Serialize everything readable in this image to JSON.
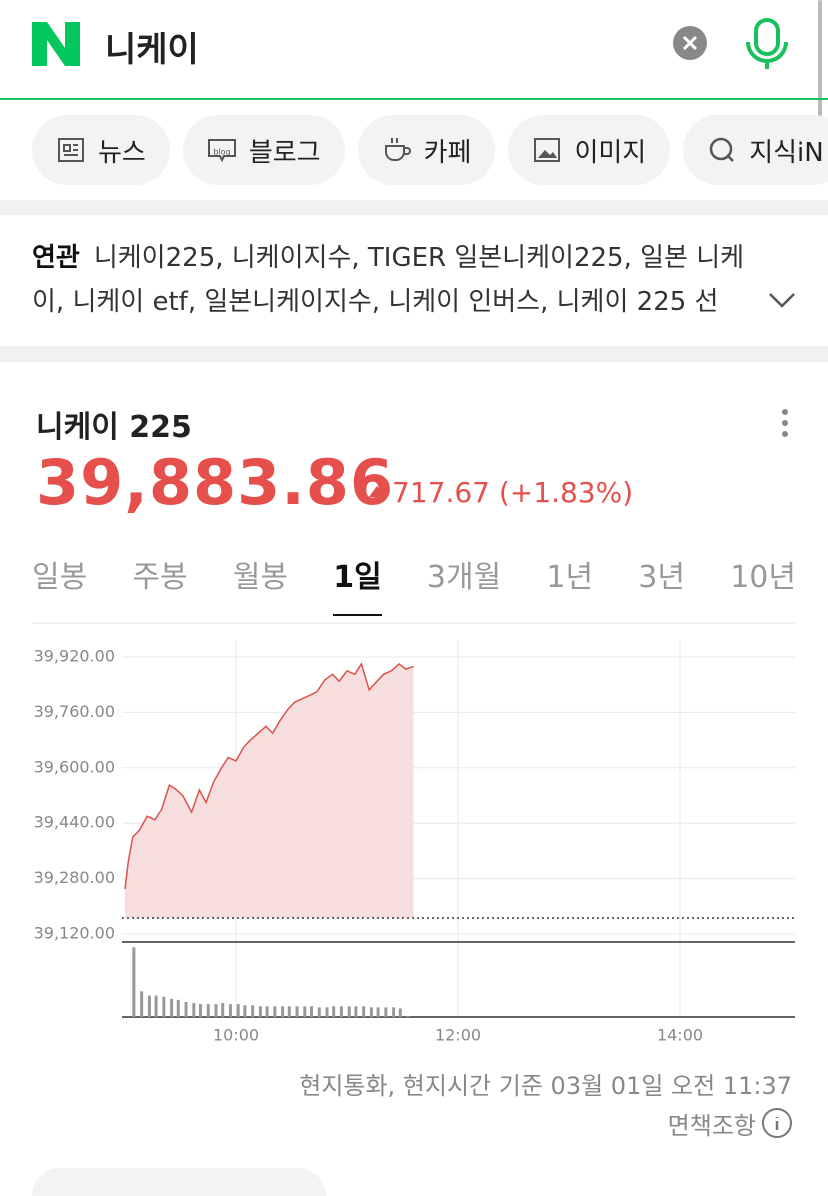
{
  "header": {
    "query": "니케이"
  },
  "tabs": [
    "뉴스",
    "블로그",
    "카페",
    "이미지",
    "지식iN"
  ],
  "blog_icon_text": "blog",
  "related": {
    "label": "연관",
    "text": "니케이225, 니케이지수, TIGER 일본니케이225, 일본 니케이, 니케이 etf, 일본니케이지수, 니케이 인버스, 니케이 225 선"
  },
  "stock": {
    "name": "니케이 225",
    "price": "39,883.86",
    "change": "717.67 (+1.83%)"
  },
  "periods": [
    "일봉",
    "주봉",
    "월봉",
    "1일",
    "3개월",
    "1년",
    "3년",
    "10년"
  ],
  "active_period": 3,
  "chart_data": {
    "type": "line",
    "color": "#d9534f",
    "fill": "#f7dede",
    "x": [
      9.0,
      9.03,
      9.07,
      9.13,
      9.2,
      9.27,
      9.33,
      9.4,
      9.45,
      9.52,
      9.6,
      9.67,
      9.73,
      9.8,
      9.87,
      9.93,
      10.0,
      10.07,
      10.13,
      10.2,
      10.27,
      10.33,
      10.4,
      10.47,
      10.53,
      10.6,
      10.67,
      10.73,
      10.8,
      10.87,
      10.93,
      11.0,
      11.07,
      11.13,
      11.2,
      11.27,
      11.33,
      11.4,
      11.47,
      11.53,
      11.6
    ],
    "values": [
      39250,
      39330,
      39400,
      39420,
      39460,
      39450,
      39480,
      39550,
      39540,
      39520,
      39472,
      39536,
      39500,
      39560,
      39600,
      39630,
      39620,
      39660,
      39680,
      39700,
      39720,
      39700,
      39738,
      39770,
      39790,
      39800,
      39810,
      39820,
      39854,
      39870,
      39850,
      39880,
      39870,
      39900,
      39825,
      39850,
      39870,
      39880,
      39900,
      39885,
      39893
    ],
    "xlim": [
      9,
      15
    ],
    "xticks": [
      {
        "value": 10,
        "label": "10:00"
      },
      {
        "value": 12,
        "label": "12:00"
      },
      {
        "value": 14,
        "label": "14:00"
      }
    ],
    "ylim": [
      39120,
      39920
    ],
    "yticks": [
      {
        "value": 39920,
        "label": "39,920.00"
      },
      {
        "value": 39760,
        "label": "39,760.00"
      },
      {
        "value": 39600,
        "label": "39,600.00"
      },
      {
        "value": 39440,
        "label": "39,440.00"
      },
      {
        "value": 39280,
        "label": "39,280.00"
      },
      {
        "value": 39120,
        "label": "39,120.00"
      }
    ],
    "grid": true,
    "reference_line": 39166.19,
    "volume": {
      "color": "#999999",
      "ylim": [
        0,
        70
      ],
      "x": [
        9.08,
        9.15,
        9.22,
        9.28,
        9.35,
        9.42,
        9.48,
        9.55,
        9.62,
        9.68,
        9.75,
        9.82,
        9.88,
        9.95,
        10.02,
        10.08,
        10.15,
        10.22,
        10.28,
        10.35,
        10.42,
        10.48,
        10.55,
        10.62,
        10.68,
        10.75,
        10.82,
        10.88,
        10.95,
        11.02,
        11.08,
        11.15,
        11.22,
        11.28,
        11.35,
        11.42,
        11.48,
        11.55
      ],
      "values": [
        65,
        24,
        20,
        20,
        19,
        17,
        16,
        14,
        13,
        12,
        12,
        12,
        13,
        12,
        12,
        11,
        11,
        10,
        10,
        10,
        10,
        10,
        10,
        10,
        10,
        9,
        9,
        10,
        10,
        10,
        10,
        10,
        9,
        9,
        9,
        9,
        8,
        1
      ]
    }
  },
  "footer": {
    "basis": "현지통화, 현지시간 기준 03월 01일 오전 11:37",
    "disclaimer": "면책조항"
  }
}
